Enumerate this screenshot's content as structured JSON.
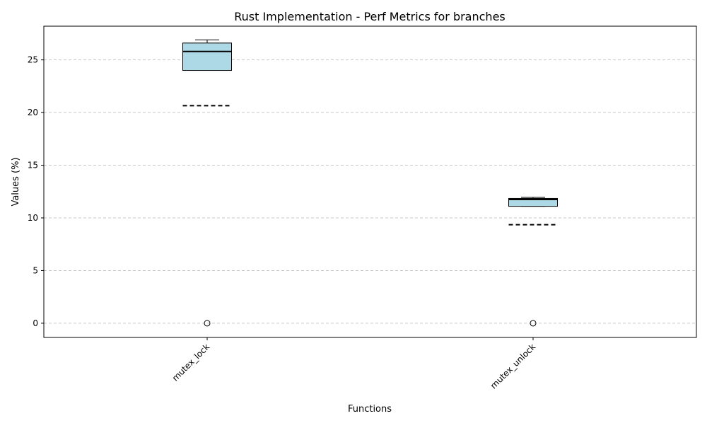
{
  "chart_data": {
    "type": "box",
    "title": "Rust Implementation - Perf Metrics for branches",
    "xlabel": "Functions",
    "ylabel": "Values (%)",
    "categories": [
      "mutex_lock",
      "mutex_unlock"
    ],
    "ylim": [
      -1.35,
      28.2
    ],
    "yticks": [
      0,
      5,
      10,
      15,
      20,
      25
    ],
    "grid": "y-dashed",
    "box_color": "#add8e6",
    "boxes": [
      {
        "name": "mutex_lock",
        "whisker_low": 24.0,
        "q1": 24.0,
        "median": 25.8,
        "q3": 26.6,
        "whisker_high": 26.9,
        "mean": 20.65,
        "outliers": [
          0
        ]
      },
      {
        "name": "mutex_unlock",
        "whisker_low": 11.1,
        "q1": 11.1,
        "median": 11.75,
        "q3": 11.85,
        "whisker_high": 11.95,
        "mean": 9.35,
        "outliers": [
          0
        ]
      }
    ]
  }
}
